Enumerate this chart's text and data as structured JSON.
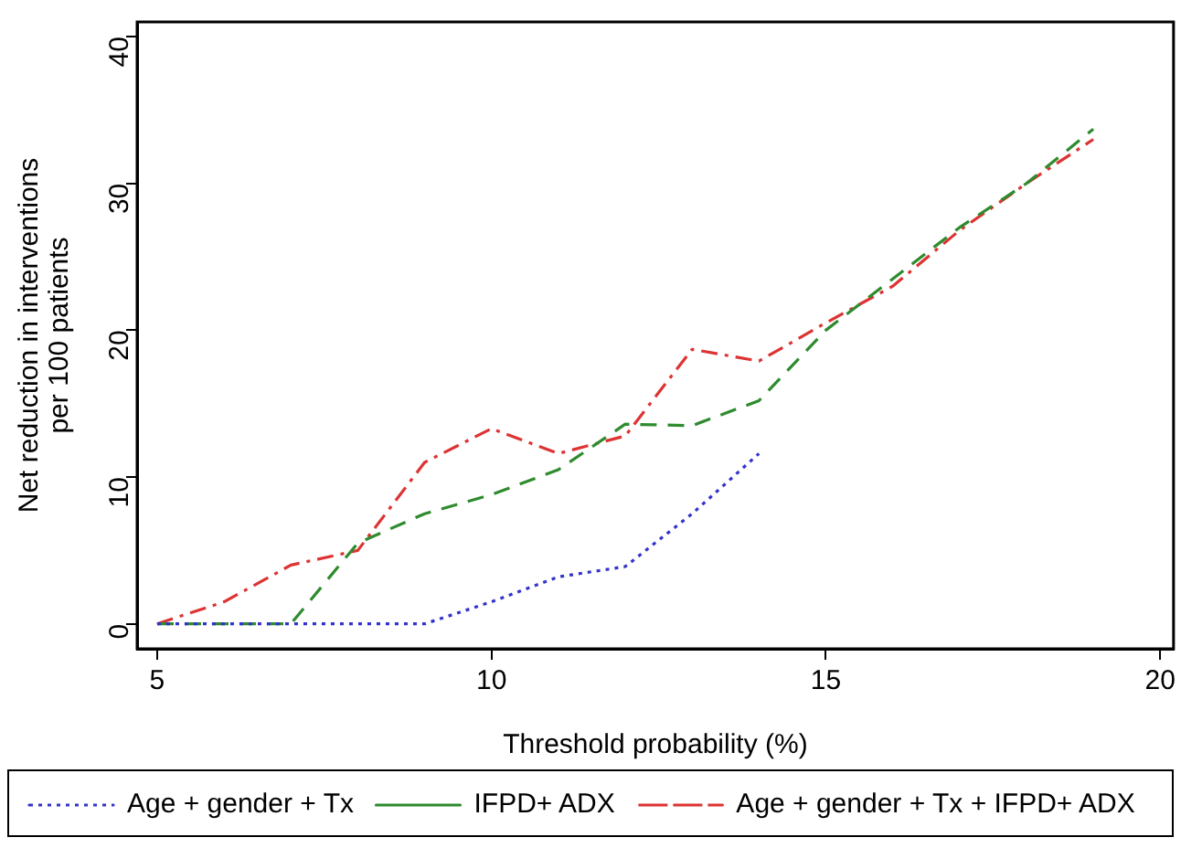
{
  "chart_data": {
    "type": "line",
    "xlabel": "Threshold probability (%)",
    "ylabel": "Net reduction in interventions\nper 100 patients",
    "xlim": [
      4.7,
      20.2
    ],
    "xticks": [
      5,
      10,
      15,
      20
    ],
    "ylim": [
      -1.7,
      41
    ],
    "yticks": [
      0,
      10,
      20,
      30,
      40
    ],
    "grid": false,
    "legend": "bottom",
    "marker": "none",
    "series": [
      {
        "name": "Age + gender + Tx",
        "color": "#3333cc",
        "line_style": "dotted",
        "x": [
          5,
          6,
          7,
          8,
          9,
          10,
          11,
          12,
          13,
          14
        ],
        "values": [
          0,
          0,
          0,
          0,
          0,
          1.5,
          3.2,
          3.9,
          7.5,
          11.6
        ]
      },
      {
        "name": "IFPD+ ADX",
        "color": "#2e8b2e",
        "line_style": "dashed",
        "x": [
          5,
          6,
          7,
          8,
          9,
          10,
          11,
          12,
          13,
          14,
          15,
          16,
          17,
          18,
          19
        ],
        "values": [
          0,
          0,
          0,
          5.5,
          7.5,
          8.8,
          10.5,
          13.6,
          13.5,
          15.2,
          20,
          23.5,
          27,
          30,
          33.7
        ]
      },
      {
        "name": "Age + gender + Tx + IFPD+ ADX",
        "color": "#dd3333",
        "line_style": "dashdot",
        "x": [
          5,
          6,
          7,
          8,
          9,
          10,
          11,
          12,
          13,
          14,
          15,
          16,
          17,
          18,
          19
        ],
        "values": [
          0,
          1.5,
          4,
          5,
          11,
          13.3,
          11.6,
          12.8,
          18.7,
          17.9,
          20.5,
          23,
          26.8,
          30,
          33
        ]
      }
    ]
  }
}
